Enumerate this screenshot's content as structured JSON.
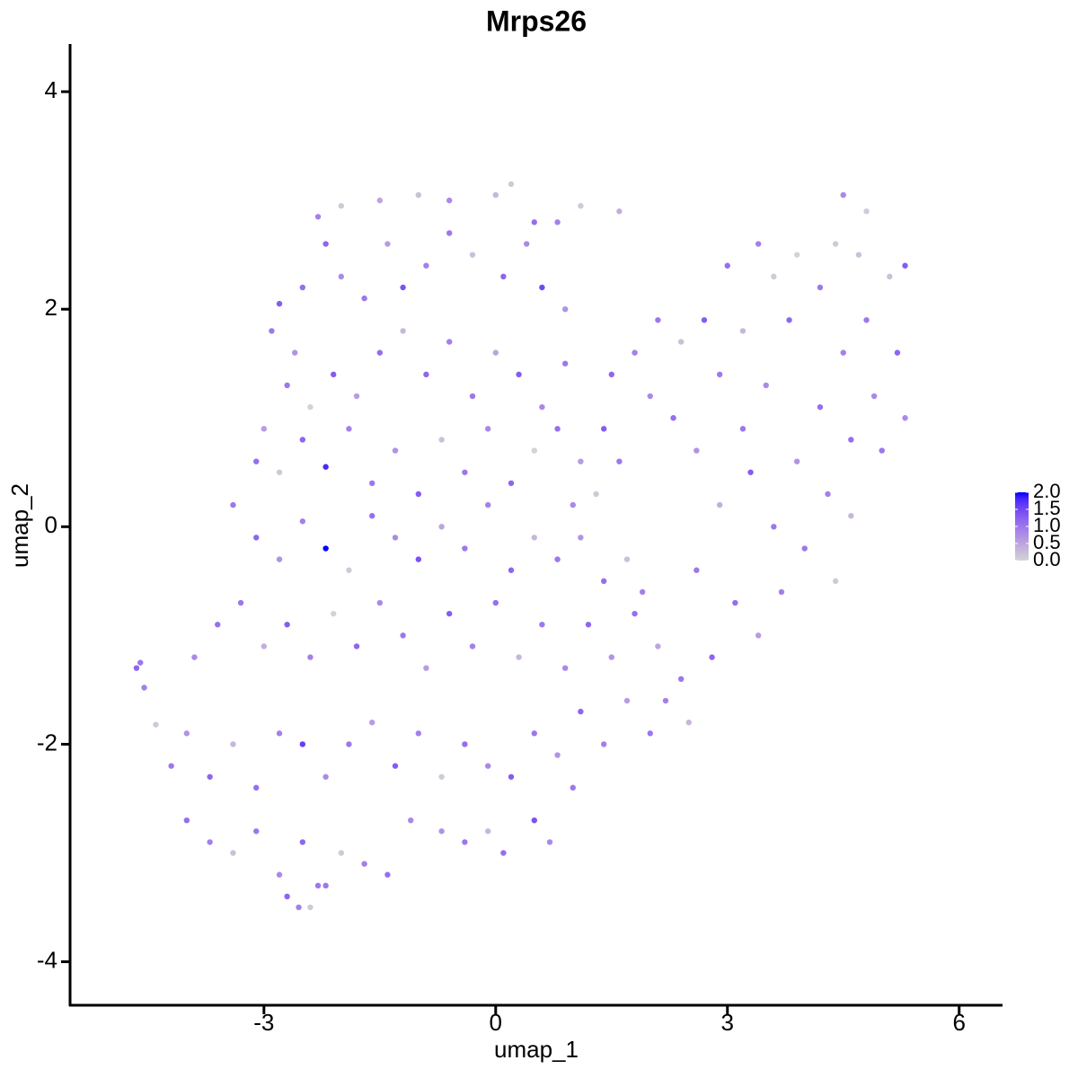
{
  "chart_data": {
    "type": "scatter",
    "title": "Mrps26",
    "x_label": "umap_1",
    "y_label": "umap_2",
    "x": [
      -4.6,
      -4.65,
      -4.55,
      -4.4,
      -2.3,
      -2.0,
      -1.5,
      -1.0,
      -0.6,
      0.0,
      0.2,
      0.5,
      0.8,
      1.1,
      1.6,
      -2.8,
      -2.9,
      -2.6,
      -2.5,
      -2.2,
      -2.0,
      -1.7,
      -1.4,
      -1.2,
      -0.9,
      -0.6,
      -0.3,
      0.1,
      0.4,
      0.6,
      0.9,
      -2.7,
      -2.4,
      -2.1,
      -1.8,
      -1.5,
      -1.2,
      -0.9,
      -0.6,
      -0.3,
      0.0,
      0.3,
      0.6,
      0.9,
      -3.0,
      -3.1,
      -2.8,
      -2.5,
      -2.2,
      -1.9,
      -1.6,
      -1.3,
      -1.0,
      -0.7,
      -0.4,
      -0.1,
      0.2,
      0.5,
      0.8,
      1.1,
      1.4,
      -3.4,
      -3.1,
      -2.8,
      -2.5,
      -2.2,
      -1.9,
      -1.6,
      -1.3,
      -1.0,
      -0.7,
      -0.4,
      -0.1,
      0.2,
      0.5,
      0.8,
      1.1,
      1.4,
      1.7,
      1.9,
      -3.9,
      -3.6,
      -3.3,
      -3.0,
      -2.7,
      -2.4,
      -2.1,
      -1.8,
      -1.5,
      -1.2,
      -0.9,
      -0.6,
      -0.3,
      0.0,
      0.3,
      0.6,
      0.9,
      1.2,
      1.5,
      1.8,
      2.1,
      2.4,
      -4.2,
      -4.0,
      -3.7,
      -3.4,
      -3.1,
      -2.8,
      -2.5,
      -2.2,
      -1.9,
      -1.6,
      -1.3,
      -1.0,
      -0.7,
      -0.4,
      -0.1,
      0.2,
      0.5,
      0.8,
      1.1,
      1.4,
      1.7,
      2.0,
      -4.0,
      -3.7,
      -3.4,
      -3.1,
      -2.8,
      -2.5,
      -2.3,
      -2.0,
      -1.7,
      -1.4,
      -1.1,
      -0.7,
      -0.4,
      -0.1,
      0.1,
      0.5,
      0.7,
      1.0,
      -2.7,
      -2.55,
      -2.4,
      -2.2,
      1.5,
      1.8,
      2.1,
      2.4,
      2.7,
      2.0,
      2.3,
      2.6,
      2.9,
      3.2,
      3.0,
      3.4,
      3.6,
      3.8,
      3.5,
      3.2,
      2.9,
      3.3,
      3.6,
      3.9,
      4.2,
      4.5,
      4.8,
      5.1,
      5.2,
      4.9,
      4.6,
      4.3,
      4.0,
      4.6,
      5.0,
      5.3,
      4.4,
      4.5,
      4.7,
      4.2,
      3.9,
      4.8,
      5.3,
      2.6,
      3.1,
      3.4,
      2.8,
      3.7,
      4.4,
      2.2,
      2.5,
      1.0,
      1.3,
      1.6
    ],
    "y": [
      -1.25,
      -1.3,
      -1.48,
      -1.82,
      2.85,
      2.95,
      3.0,
      3.05,
      3.0,
      3.05,
      3.15,
      2.8,
      2.8,
      2.95,
      2.9,
      2.05,
      1.8,
      1.6,
      2.2,
      2.6,
      2.3,
      2.1,
      2.6,
      2.2,
      2.4,
      2.7,
      2.5,
      2.3,
      2.6,
      2.2,
      2.0,
      1.3,
      1.1,
      1.4,
      1.2,
      1.6,
      1.8,
      1.4,
      1.7,
      1.2,
      1.6,
      1.4,
      1.1,
      1.5,
      0.9,
      0.6,
      0.5,
      0.8,
      0.55,
      0.9,
      0.4,
      0.7,
      0.3,
      0.8,
      0.5,
      0.9,
      0.4,
      0.7,
      0.9,
      0.6,
      0.9,
      0.2,
      -0.1,
      -0.3,
      0.05,
      -0.2,
      -0.4,
      0.1,
      -0.1,
      -0.3,
      0.0,
      -0.2,
      0.2,
      -0.4,
      -0.1,
      -0.3,
      -0.1,
      -0.5,
      -0.3,
      -0.6,
      -1.2,
      -0.9,
      -0.7,
      -1.1,
      -0.9,
      -1.2,
      -0.8,
      -1.1,
      -0.7,
      -1.0,
      -1.3,
      -0.8,
      -1.1,
      -0.7,
      -1.2,
      -0.9,
      -1.3,
      -0.9,
      -1.2,
      -0.8,
      -1.1,
      -1.4,
      -2.2,
      -1.9,
      -2.3,
      -2.0,
      -2.4,
      -1.9,
      -2.0,
      -2.3,
      -2.0,
      -1.8,
      -2.2,
      -1.9,
      -2.3,
      -2.0,
      -2.2,
      -2.3,
      -1.9,
      -2.1,
      -1.7,
      -2.0,
      -1.6,
      -1.9,
      -2.7,
      -2.9,
      -3.0,
      -2.8,
      -3.2,
      -2.9,
      -3.3,
      -3.0,
      -3.1,
      -3.2,
      -2.7,
      -2.8,
      -2.9,
      -2.8,
      -3.0,
      -2.7,
      -2.9,
      -2.4,
      -3.4,
      -3.5,
      -3.5,
      -3.3,
      1.4,
      1.6,
      1.9,
      1.7,
      1.9,
      1.2,
      1.0,
      0.7,
      1.4,
      1.8,
      2.4,
      2.6,
      2.3,
      1.9,
      1.3,
      0.9,
      0.2,
      0.5,
      0.0,
      0.6,
      1.1,
      1.6,
      1.9,
      2.3,
      1.6,
      1.2,
      0.8,
      0.3,
      -0.2,
      0.1,
      0.7,
      1.0,
      2.6,
      3.05,
      2.5,
      2.2,
      2.5,
      2.9,
      2.4,
      -0.4,
      -0.7,
      -1.0,
      -1.2,
      -0.6,
      -0.5,
      -1.6,
      -1.8,
      0.2,
      0.3,
      0.6
    ],
    "values": [
      1.0,
      1.2,
      0.9,
      0.1,
      0.9,
      0.1,
      0.5,
      0.2,
      0.8,
      0.3,
      0.1,
      1.1,
      0.9,
      0.1,
      0.4,
      1.3,
      1.0,
      0.7,
      1.1,
      1.2,
      0.8,
      1.0,
      0.6,
      1.4,
      0.9,
      1.0,
      0.2,
      1.2,
      0.8,
      1.5,
      0.7,
      1.0,
      0.0,
      1.3,
      0.6,
      1.1,
      0.3,
      1.2,
      0.9,
      1.0,
      0.5,
      1.3,
      0.8,
      1.0,
      0.6,
      1.1,
      0.1,
      1.2,
      1.8,
      0.9,
      1.0,
      0.7,
      1.3,
      0.2,
      1.0,
      0.8,
      1.2,
      0.0,
      1.1,
      0.6,
      1.3,
      1.0,
      1.2,
      0.7,
      0.9,
      2.0,
      0.1,
      1.1,
      0.8,
      1.4,
      0.5,
      1.0,
      0.9,
      1.2,
      0.3,
      1.0,
      0.7,
      1.1,
      0.2,
      0.9,
      0.8,
      1.1,
      1.0,
      0.4,
      1.3,
      0.9,
      0.0,
      1.2,
      0.8,
      1.0,
      0.6,
      1.3,
      0.9,
      1.1,
      0.3,
      1.0,
      0.8,
      1.2,
      0.7,
      1.1,
      0.5,
      1.0,
      1.0,
      0.7,
      1.2,
      0.3,
      1.1,
      0.9,
      1.6,
      0.8,
      1.0,
      0.6,
      1.3,
      0.9,
      0.1,
      1.1,
      0.8,
      1.3,
      1.0,
      0.7,
      1.2,
      0.9,
      0.6,
      1.0,
      1.1,
      0.9,
      0.2,
      1.0,
      0.8,
      1.2,
      1.0,
      0.1,
      0.9,
      1.1,
      0.8,
      0.7,
      1.0,
      0.3,
      1.1,
      1.4,
      0.8,
      1.0,
      1.2,
      0.9,
      0.1,
      1.0,
      1.2,
      0.9,
      1.0,
      0.2,
      1.3,
      0.8,
      1.1,
      0.7,
      1.0,
      0.3,
      1.1,
      0.9,
      0.1,
      1.2,
      0.8,
      1.0,
      0.4,
      1.3,
      1.0,
      0.7,
      1.1,
      0.9,
      1.0,
      0.2,
      1.2,
      0.8,
      1.1,
      0.9,
      1.0,
      0.3,
      1.0,
      0.8,
      0.1,
      0.8,
      0.2,
      1.0,
      0.0,
      0.1,
      1.3,
      1.0,
      1.1,
      0.6,
      1.2,
      0.9,
      0.1,
      0.9,
      0.3,
      0.8,
      0.1,
      1.0
    ],
    "xlim": [
      -5.51,
      6.55
    ],
    "xticks": [
      -3,
      0,
      3,
      6
    ],
    "ylim": [
      -4.4,
      4.43
    ],
    "yticks": [
      -4,
      -2,
      0,
      2,
      4
    ],
    "colorscale": [
      "#d3d3d3",
      "#0000ff"
    ],
    "clim": [
      0,
      2
    ],
    "cticks": [
      {
        "value": 0,
        "label": "0.0"
      },
      {
        "value": 0.5,
        "label": "0.5"
      },
      {
        "value": 1,
        "label": "1.0"
      },
      {
        "value": 1.5,
        "label": "1.5"
      },
      {
        "value": 2,
        "label": "2.0"
      }
    ],
    "grid": false
  }
}
